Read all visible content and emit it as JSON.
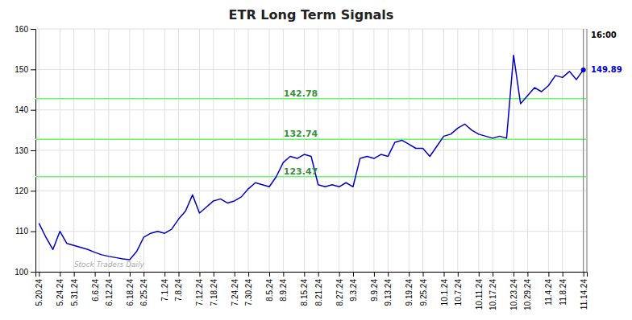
{
  "chart_data": {
    "type": "line",
    "title": "ETR Long Term Signals",
    "categories": [
      "5.20.24",
      null,
      null,
      "5.24.24",
      null,
      "5.31.24",
      null,
      null,
      "6.6.24",
      null,
      "6.12.24",
      null,
      null,
      "6.18.24",
      null,
      "6.25.24",
      null,
      null,
      "7.1.24",
      null,
      "7.8.24",
      null,
      null,
      "7.12.24",
      null,
      "7.18.24",
      null,
      null,
      "7.24.24",
      null,
      "7.30.24",
      null,
      null,
      "8.5.24",
      null,
      "8.9.24",
      null,
      null,
      "8.15.24",
      null,
      "8.21.24",
      null,
      null,
      "8.27.24",
      null,
      "9.3.24",
      null,
      null,
      "9.9.24",
      null,
      "9.13.24",
      null,
      null,
      "9.19.24",
      null,
      "9.25.24",
      null,
      null,
      "10.1.24",
      null,
      "10.7.24",
      null,
      null,
      "10.11.24",
      null,
      "10.17.24",
      null,
      null,
      "10.23.24",
      null,
      "10.29.24",
      null,
      null,
      "11.4.24",
      null,
      "11.8.24",
      null,
      null,
      "11.14.24"
    ],
    "values": [
      112.0,
      108.5,
      105.5,
      110.0,
      107.0,
      106.5,
      106.0,
      105.5,
      104.8,
      104.2,
      103.8,
      103.5,
      103.2,
      103.0,
      105.0,
      108.5,
      109.5,
      110.0,
      109.5,
      110.5,
      113.0,
      115.0,
      119.0,
      114.5,
      116.0,
      117.5,
      118.0,
      117.0,
      117.5,
      118.5,
      120.5,
      122.0,
      121.5,
      121.0,
      123.5,
      127.0,
      128.5,
      128.0,
      129.0,
      128.5,
      121.5,
      121.0,
      121.5,
      121.0,
      122.0,
      121.0,
      128.0,
      128.5,
      128.0,
      129.0,
      128.5,
      132.0,
      132.5,
      131.5,
      130.5,
      130.5,
      128.5,
      131.0,
      133.5,
      134.0,
      135.5,
      136.5,
      135.0,
      134.0,
      133.5,
      133.0,
      133.5,
      133.0,
      153.5,
      141.5,
      143.5,
      145.5,
      144.5,
      146.0,
      148.5,
      148.0,
      149.5,
      147.5,
      149.89
    ],
    "color": "#0000cc",
    "ylim": [
      100,
      160
    ],
    "yticks": [
      100,
      110,
      120,
      130,
      140,
      150,
      160
    ],
    "grid": true,
    "reference_lines": [
      {
        "value": 123.47,
        "label": "123.47",
        "color": "#66ff66"
      },
      {
        "value": 132.74,
        "label": "132.74",
        "color": "#66ff66"
      },
      {
        "value": 142.78,
        "label": "142.78",
        "color": "#66ff66"
      }
    ],
    "watermark": "Stock Traders Daily",
    "annotations": [
      {
        "text": "16:00"
      },
      {
        "text": "149.89",
        "y": 149.89
      }
    ]
  }
}
